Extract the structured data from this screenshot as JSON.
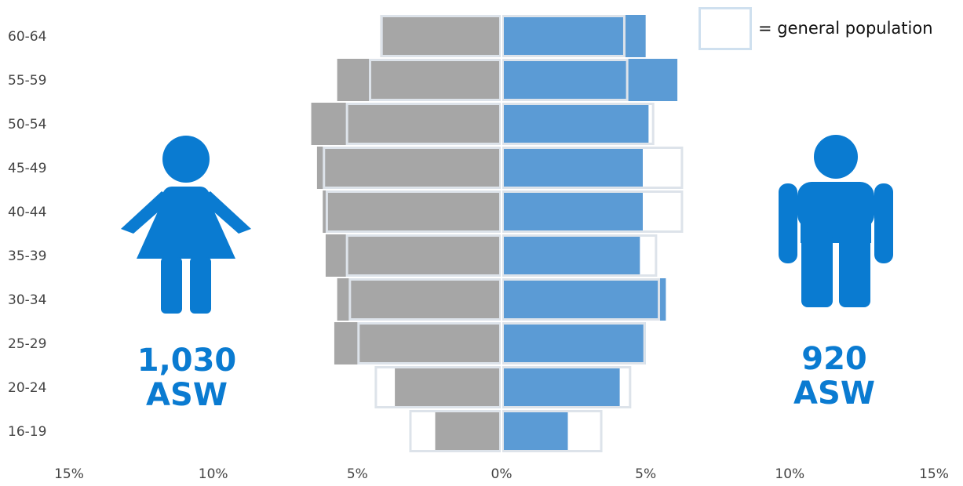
{
  "legend": {
    "label": "= general population"
  },
  "female": {
    "count": "1,030",
    "unit": "ASW"
  },
  "male": {
    "count": "920",
    "unit": "ASW"
  },
  "colors": {
    "female_bar": "#a6a6a6",
    "female_bar_shadow": "#8c8c8c",
    "male_bar": "#5b9bd5",
    "male_bar_shadow": "#4a8ac6",
    "outline": "#dde3ea",
    "accent": "#0a7bd1",
    "legend_box": "#cfe0ef"
  },
  "icons": {
    "female": "female-figure-icon",
    "male": "male-figure-icon"
  },
  "chart_data": {
    "type": "bar",
    "orientation": "horizontal",
    "layout": "population-pyramid",
    "categories": [
      "60-64",
      "55-59",
      "50-54",
      "45-49",
      "40-44",
      "35-39",
      "30-34",
      "25-29",
      "20-24",
      "16-19"
    ],
    "series": [
      {
        "side": "left",
        "kind": "bar",
        "values": [
          4.2,
          5.7,
          6.6,
          6.4,
          6.2,
          6.1,
          5.7,
          5.8,
          3.7,
          2.3
        ]
      },
      {
        "side": "right",
        "kind": "bar",
        "values": [
          5.0,
          6.1,
          5.1,
          4.9,
          4.9,
          4.8,
          5.7,
          5.0,
          4.1,
          2.3
        ]
      },
      {
        "side": "left",
        "kind": "outline",
        "name": "general population",
        "values": [
          4.2,
          4.6,
          5.4,
          6.2,
          6.1,
          5.4,
          5.3,
          5.0,
          4.4,
          3.2
        ]
      },
      {
        "side": "right",
        "kind": "outline",
        "name": "general population",
        "values": [
          4.3,
          4.4,
          5.3,
          6.3,
          6.3,
          5.4,
          5.5,
          5.0,
          4.5,
          3.5
        ]
      }
    ],
    "xticks": [
      "15%",
      "10%",
      "5%",
      "0%",
      "5%",
      "10%",
      "15%"
    ],
    "xlim": [
      -15,
      15
    ],
    "legend_position": "top-right",
    "grid": false
  }
}
